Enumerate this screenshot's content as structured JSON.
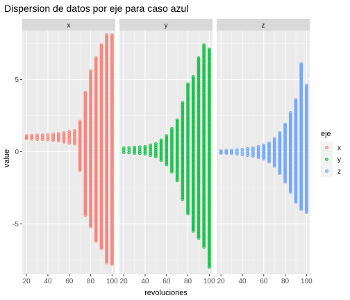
{
  "chart_data": {
    "type": "scatter",
    "title": "Dispersion de datos por eje para caso azul",
    "xlabel": "revoluciones",
    "ylabel": "value",
    "xlim": [
      16,
      103
    ],
    "ylim": [
      -8.5,
      8.4
    ],
    "x_ticks": [
      20,
      40,
      60,
      80,
      100
    ],
    "x_tick_labels": [
      "20",
      "40",
      "60",
      "80",
      "100"
    ],
    "y_ticks": [
      -5,
      0,
      5
    ],
    "y_tick_labels": [
      "-5",
      "0",
      "5"
    ],
    "grid": true,
    "legend": {
      "title": "eje",
      "position": "right"
    },
    "facets": [
      {
        "name": "x",
        "color": "#F8766D",
        "columns": [
          {
            "x": 20,
            "center": 1.0,
            "min": 0.9,
            "max": 1.1
          },
          {
            "x": 25,
            "center": 1.0,
            "min": 0.88,
            "max": 1.12
          },
          {
            "x": 30,
            "center": 1.0,
            "min": 0.86,
            "max": 1.14
          },
          {
            "x": 35,
            "center": 1.0,
            "min": 0.85,
            "max": 1.15
          },
          {
            "x": 40,
            "center": 1.0,
            "min": 0.83,
            "max": 1.17
          },
          {
            "x": 45,
            "center": 1.0,
            "min": 0.8,
            "max": 1.2
          },
          {
            "x": 50,
            "center": 1.0,
            "min": 0.75,
            "max": 1.25
          },
          {
            "x": 55,
            "center": 1.0,
            "min": 0.68,
            "max": 1.3
          },
          {
            "x": 60,
            "center": 1.0,
            "min": 0.6,
            "max": 1.4
          },
          {
            "x": 65,
            "center": 1.0,
            "min": 0.55,
            "max": 1.45
          },
          {
            "x": 70,
            "center": 0.9,
            "min": -1.3,
            "max": 2.1
          },
          {
            "x": 75,
            "center": 0.5,
            "min": -4.4,
            "max": 4.1
          },
          {
            "x": 80,
            "center": 0.3,
            "min": -5.2,
            "max": 5.6
          },
          {
            "x": 85,
            "center": 0.2,
            "min": -6.2,
            "max": 6.5
          },
          {
            "x": 90,
            "center": 0.0,
            "min": -6.7,
            "max": 7.4
          },
          {
            "x": 95,
            "center": 0.0,
            "min": -7.7,
            "max": 8.1
          },
          {
            "x": 100,
            "center": 0.0,
            "min": -7.8,
            "max": 8.1
          }
        ]
      },
      {
        "name": "y",
        "color": "#00BA38",
        "columns": [
          {
            "x": 20,
            "center": 0.1,
            "min": -0.05,
            "max": 0.25
          },
          {
            "x": 25,
            "center": 0.1,
            "min": -0.07,
            "max": 0.27
          },
          {
            "x": 30,
            "center": 0.1,
            "min": -0.1,
            "max": 0.3
          },
          {
            "x": 35,
            "center": 0.1,
            "min": -0.12,
            "max": 0.32
          },
          {
            "x": 40,
            "center": 0.1,
            "min": -0.15,
            "max": 0.35
          },
          {
            "x": 45,
            "center": 0.1,
            "min": -0.25,
            "max": 0.45
          },
          {
            "x": 50,
            "center": 0.1,
            "min": -0.35,
            "max": 0.55
          },
          {
            "x": 55,
            "center": 0.1,
            "min": -0.6,
            "max": 0.8
          },
          {
            "x": 60,
            "center": 0.1,
            "min": -0.9,
            "max": 1.1
          },
          {
            "x": 65,
            "center": 0.1,
            "min": -1.4,
            "max": 1.6
          },
          {
            "x": 70,
            "center": 0.1,
            "min": -2.0,
            "max": 2.2
          },
          {
            "x": 75,
            "center": 0.1,
            "min": -3.3,
            "max": 3.4
          },
          {
            "x": 80,
            "center": 0.1,
            "min": -4.3,
            "max": 4.7
          },
          {
            "x": 85,
            "center": 0.1,
            "min": -5.5,
            "max": 5.2
          },
          {
            "x": 90,
            "center": 0.1,
            "min": -6.0,
            "max": 6.5
          },
          {
            "x": 95,
            "center": 0.1,
            "min": -6.6,
            "max": 7.4
          },
          {
            "x": 100,
            "center": 0.1,
            "min": -8.0,
            "max": 7.1
          }
        ]
      },
      {
        "name": "z",
        "color": "#619CFF",
        "columns": [
          {
            "x": 20,
            "center": 0.0,
            "min": -0.1,
            "max": 0.05
          },
          {
            "x": 25,
            "center": 0.0,
            "min": -0.1,
            "max": 0.08
          },
          {
            "x": 30,
            "center": 0.0,
            "min": -0.12,
            "max": 0.1
          },
          {
            "x": 35,
            "center": 0.0,
            "min": -0.15,
            "max": 0.12
          },
          {
            "x": 40,
            "center": 0.0,
            "min": -0.2,
            "max": 0.15
          },
          {
            "x": 45,
            "center": 0.0,
            "min": -0.25,
            "max": 0.2
          },
          {
            "x": 50,
            "center": 0.0,
            "min": -0.3,
            "max": 0.25
          },
          {
            "x": 55,
            "center": 0.0,
            "min": -0.4,
            "max": 0.35
          },
          {
            "x": 60,
            "center": 0.0,
            "min": -0.5,
            "max": 0.45
          },
          {
            "x": 65,
            "center": 0.0,
            "min": -0.7,
            "max": 0.6
          },
          {
            "x": 70,
            "center": 0.0,
            "min": -1.0,
            "max": 0.9
          },
          {
            "x": 75,
            "center": 0.0,
            "min": -1.5,
            "max": 1.3
          },
          {
            "x": 80,
            "center": 0.0,
            "min": -2.1,
            "max": 1.9
          },
          {
            "x": 85,
            "center": 0.0,
            "min": -2.8,
            "max": 2.7
          },
          {
            "x": 90,
            "center": 0.0,
            "min": -3.5,
            "max": 3.6
          },
          {
            "x": 95,
            "center": 0.0,
            "min": -4.0,
            "max": 6.1
          },
          {
            "x": 100,
            "center": 0.0,
            "min": -4.2,
            "max": 4.6
          }
        ]
      }
    ]
  }
}
